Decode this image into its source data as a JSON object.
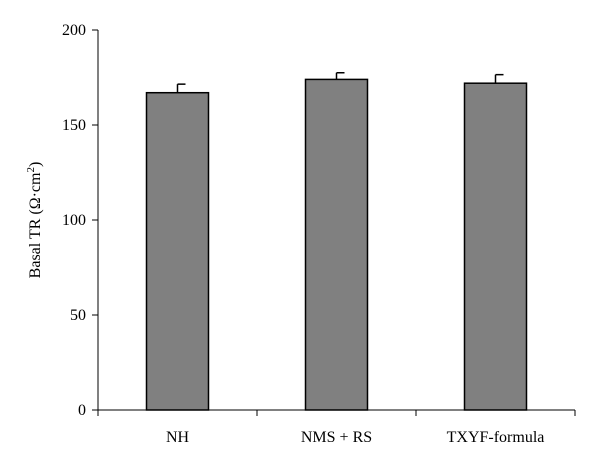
{
  "chart_data": {
    "type": "bar",
    "categories": [
      "NH",
      "NMS + RS",
      "TXYF-formula"
    ],
    "values": [
      167,
      174,
      172
    ],
    "error_bars": [
      4.5,
      3.5,
      4.5
    ],
    "ylabel_main": "Basal TR (Ω·cm",
    "ylabel_sup": "2",
    "ylabel_close": ")",
    "ylim": [
      0,
      200
    ],
    "yticks": [
      0,
      50,
      100,
      150,
      200
    ],
    "grid": false,
    "legend": "none",
    "bar_color": "#808080",
    "bar_edge_color": "#000000"
  }
}
